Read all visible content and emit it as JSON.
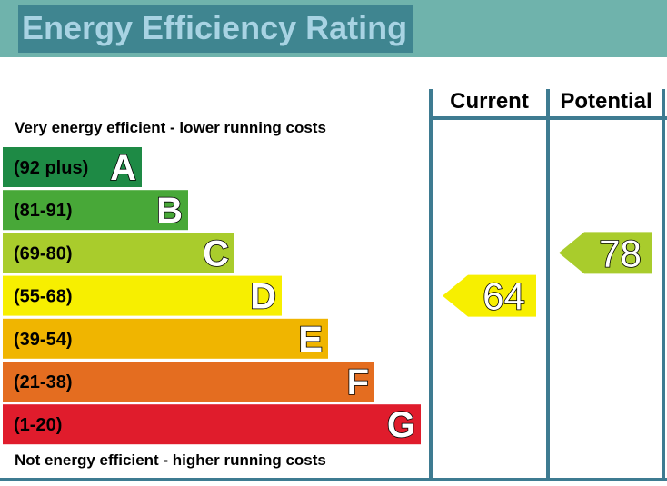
{
  "title": "Energy Efficiency Rating",
  "top_note": "Very energy efficient - lower running costs",
  "bottom_note": "Not energy efficient - higher running costs",
  "columns": {
    "current": "Current",
    "potential": "Potential"
  },
  "colors": {
    "header": "#6fb3ac",
    "title_box": "#3f8590",
    "title_text": "#a8d3e3",
    "frame": "#3e7b91"
  },
  "chart_data": {
    "type": "bar",
    "title": "Energy Efficiency Rating",
    "bands": [
      {
        "label": "(92 plus)",
        "letter": "A",
        "min": 92,
        "max": 100,
        "color": "#1e8a45"
      },
      {
        "label": "(81-91)",
        "letter": "B",
        "min": 81,
        "max": 91,
        "color": "#48a838"
      },
      {
        "label": "(69-80)",
        "letter": "C",
        "min": 69,
        "max": 80,
        "color": "#a9cc2c"
      },
      {
        "label": "(55-68)",
        "letter": "D",
        "min": 55,
        "max": 68,
        "color": "#f7ef00"
      },
      {
        "label": "(39-54)",
        "letter": "E",
        "min": 39,
        "max": 54,
        "color": "#f0b500"
      },
      {
        "label": "(21-38)",
        "letter": "F",
        "min": 21,
        "max": 38,
        "color": "#e46d20"
      },
      {
        "label": "(1-20)",
        "letter": "G",
        "min": 1,
        "max": 20,
        "color": "#e01c2c"
      }
    ],
    "current": {
      "value": 64,
      "band": "D",
      "color": "#f7ef00"
    },
    "potential": {
      "value": 78,
      "band": "C",
      "color": "#a9cc2c"
    }
  }
}
